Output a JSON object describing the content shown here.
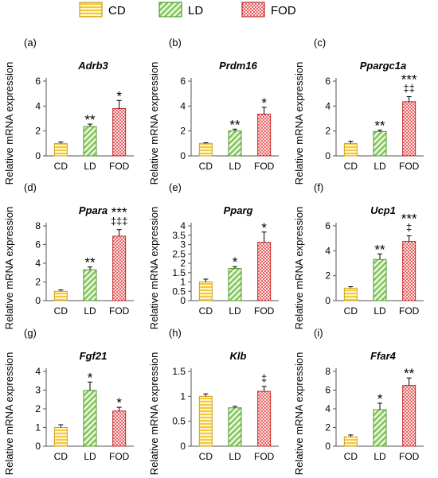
{
  "legend": [
    {
      "label": "CD",
      "fill": "#f7d24c",
      "pattern": "hstripe"
    },
    {
      "label": "LD",
      "fill": "#8fd16a",
      "pattern": "diag"
    },
    {
      "label": "FOD",
      "fill": "#f06a6a",
      "pattern": "dots"
    }
  ],
  "ylabel": "Relative  mRNA expression",
  "chart_data": [
    {
      "type": "bar",
      "panel": "(a)",
      "title": "Adrb3",
      "categories": [
        "CD",
        "LD",
        "FOD"
      ],
      "values": [
        1.0,
        2.35,
        3.8
      ],
      "errors": [
        0.12,
        0.2,
        0.65
      ],
      "ylim": [
        0,
        6
      ],
      "yticks": [
        0,
        2,
        4,
        6
      ],
      "annotations": [
        [
          "",
          ""
        ],
        [
          "**"
        ],
        [
          "*"
        ]
      ]
    },
    {
      "type": "bar",
      "panel": "(b)",
      "title": "Prdm16",
      "categories": [
        "CD",
        "LD",
        "FOD"
      ],
      "values": [
        1.0,
        2.0,
        3.35
      ],
      "errors": [
        0.05,
        0.15,
        0.55
      ],
      "ylim": [
        0,
        6
      ],
      "yticks": [
        0,
        2,
        4,
        6
      ],
      "annotations": [
        [],
        [
          "**"
        ],
        [
          "*"
        ]
      ]
    },
    {
      "type": "bar",
      "panel": "(c)",
      "title": "Ppargc1a",
      "categories": [
        "CD",
        "LD",
        "FOD"
      ],
      "values": [
        1.0,
        1.95,
        4.35
      ],
      "errors": [
        0.18,
        0.12,
        0.4
      ],
      "ylim": [
        0,
        6
      ],
      "yticks": [
        0,
        2,
        4,
        6
      ],
      "annotations": [
        [],
        [
          "**"
        ],
        [
          "***",
          "‡‡"
        ]
      ]
    },
    {
      "type": "bar",
      "panel": "(d)",
      "title": "Ppara",
      "categories": [
        "CD",
        "LD",
        "FOD"
      ],
      "values": [
        1.0,
        3.3,
        6.9
      ],
      "errors": [
        0.15,
        0.3,
        0.7
      ],
      "ylim": [
        0,
        8
      ],
      "yticks": [
        0,
        2,
        4,
        6,
        8
      ],
      "annotations": [
        [],
        [
          "**"
        ],
        [
          "***",
          "‡‡‡"
        ]
      ]
    },
    {
      "type": "bar",
      "panel": "(e)",
      "title": "Pparg",
      "categories": [
        "CD",
        "LD",
        "FOD"
      ],
      "values": [
        1.0,
        1.72,
        3.12
      ],
      "errors": [
        0.15,
        0.1,
        0.55
      ],
      "ylim": [
        0,
        4
      ],
      "yticks": [
        0,
        0.5,
        1,
        1.5,
        2,
        2.5,
        3,
        3.5,
        4
      ],
      "annotations": [
        [],
        [
          "*"
        ],
        [
          "*"
        ]
      ]
    },
    {
      "type": "bar",
      "panel": "(f)",
      "title": "Ucp1",
      "categories": [
        "CD",
        "LD",
        "FOD"
      ],
      "values": [
        1.0,
        3.3,
        4.75
      ],
      "errors": [
        0.12,
        0.45,
        0.45
      ],
      "ylim": [
        0,
        6
      ],
      "yticks": [
        0,
        2,
        4,
        6
      ],
      "annotations": [
        [],
        [
          "**"
        ],
        [
          "***",
          "‡"
        ]
      ]
    },
    {
      "type": "bar",
      "panel": "(g)",
      "title": "Fgf21",
      "categories": [
        "CD",
        "LD",
        "FOD"
      ],
      "values": [
        1.0,
        2.98,
        1.88
      ],
      "errors": [
        0.15,
        0.45,
        0.2
      ],
      "ylim": [
        0,
        4
      ],
      "yticks": [
        0,
        1,
        2,
        3,
        4
      ],
      "annotations": [
        [],
        [
          "*"
        ],
        [
          "*"
        ]
      ]
    },
    {
      "type": "bar",
      "panel": "(h)",
      "title": "Klb",
      "categories": [
        "CD",
        "LD",
        "FOD"
      ],
      "values": [
        1.0,
        0.77,
        1.1
      ],
      "errors": [
        0.05,
        0.03,
        0.1
      ],
      "ylim": [
        0,
        1.5
      ],
      "yticks": [
        0,
        0.5,
        1,
        1.5
      ],
      "annotations": [
        [],
        [],
        [
          "‡"
        ]
      ]
    },
    {
      "type": "bar",
      "panel": "(i)",
      "title": "Ffar4",
      "categories": [
        "CD",
        "LD",
        "FOD"
      ],
      "values": [
        1.0,
        3.9,
        6.5
      ],
      "errors": [
        0.2,
        0.7,
        0.8
      ],
      "ylim": [
        0,
        8
      ],
      "yticks": [
        0,
        2,
        4,
        6,
        8
      ],
      "annotations": [
        [],
        [
          "*"
        ],
        [
          "**"
        ]
      ]
    }
  ]
}
